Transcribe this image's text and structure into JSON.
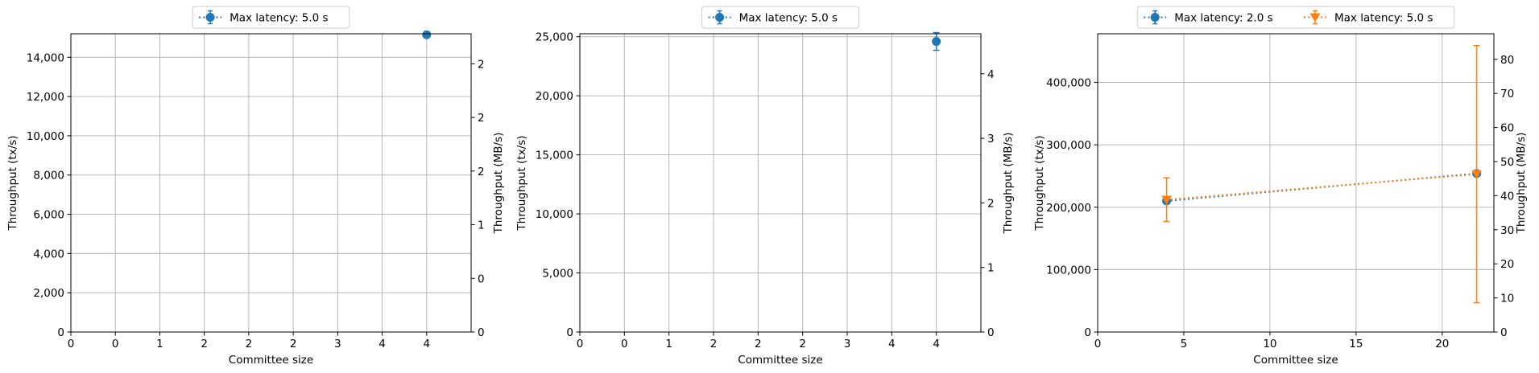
{
  "chart_data": [
    {
      "type": "scatter",
      "xlabel": "Committee size",
      "ylabel": "Throughput (tx/s)",
      "ylabel_right": "Throughput (MB/s)",
      "xlim": [
        0,
        4.5
      ],
      "ylim": [
        0,
        15200
      ],
      "x_ticks": [
        0,
        0.5,
        1,
        1.5,
        2,
        2.5,
        3,
        3.5,
        4
      ],
      "x_tick_labels": [
        "0",
        "0",
        "1",
        "2",
        "2",
        "2",
        "3",
        "4",
        "4"
      ],
      "y_ticks": [
        0,
        2000,
        4000,
        6000,
        8000,
        10000,
        12000,
        14000
      ],
      "y_tick_labels": [
        "0",
        "2,000",
        "4,000",
        "6,000",
        "8,000",
        "10,000",
        "12,000",
        "14,000"
      ],
      "y2_ticks": [
        0,
        0.5,
        1,
        1.5,
        2,
        2.5
      ],
      "y2_tick_labels": [
        "0",
        "0",
        "1",
        "2",
        "2",
        "2"
      ],
      "y2_lim": [
        0,
        2.78
      ],
      "grid": true,
      "legend_position": "top-center",
      "series": [
        {
          "name": "Max latency: 5.0 s",
          "color": "#1f77b4",
          "marker": "circle",
          "points": [
            {
              "x": 4,
              "y": 15150,
              "err": 0
            }
          ]
        }
      ]
    },
    {
      "type": "scatter",
      "xlabel": "Committee size",
      "ylabel": "Throughput (tx/s)",
      "ylabel_right": "Throughput (MB/s)",
      "xlim": [
        0,
        4.5
      ],
      "ylim": [
        0,
        25250
      ],
      "x_ticks": [
        0,
        0.5,
        1,
        1.5,
        2,
        2.5,
        3,
        3.5,
        4
      ],
      "x_tick_labels": [
        "0",
        "0",
        "1",
        "2",
        "2",
        "2",
        "3",
        "4",
        "4"
      ],
      "y_ticks": [
        0,
        5000,
        10000,
        15000,
        20000,
        25000
      ],
      "y_tick_labels": [
        "0",
        "5,000",
        "10,000",
        "15,000",
        "20,000",
        "25,000"
      ],
      "y2_ticks": [
        0,
        1,
        2,
        3,
        4
      ],
      "y2_tick_labels": [
        "0",
        "1",
        "2",
        "3",
        "4"
      ],
      "y2_lim": [
        0,
        4.62
      ],
      "grid": true,
      "legend_position": "top-center",
      "series": [
        {
          "name": "Max latency: 5.0 s",
          "color": "#1f77b4",
          "marker": "circle",
          "points": [
            {
              "x": 4,
              "y": 24600,
              "err": 750
            }
          ]
        }
      ]
    },
    {
      "type": "line",
      "xlabel": "Committee size",
      "ylabel": "Throughput (tx/s)",
      "ylabel_right": "Throughput (MB/s)",
      "xlim": [
        0,
        23
      ],
      "ylim": [
        0,
        478000
      ],
      "x_ticks": [
        0,
        5,
        10,
        15,
        20
      ],
      "x_tick_labels": [
        "0",
        "5",
        "10",
        "15",
        "20"
      ],
      "y_ticks": [
        0,
        100000,
        200000,
        300000,
        400000
      ],
      "y_tick_labels": [
        "0",
        "100,000",
        "200,000",
        "300,000",
        "400,000"
      ],
      "y2_ticks": [
        0,
        10,
        20,
        30,
        40,
        50,
        60,
        70,
        80
      ],
      "y2_tick_labels": [
        "0",
        "10",
        "20",
        "30",
        "40",
        "50",
        "60",
        "70",
        "80"
      ],
      "y2_lim": [
        0,
        87.5
      ],
      "grid": true,
      "legend_position": "top-center",
      "series": [
        {
          "name": "Max latency: 2.0 s",
          "color": "#1f77b4",
          "marker": "circle",
          "points": [
            {
              "x": 4,
              "y": 210000,
              "err": 0
            },
            {
              "x": 22,
              "y": 254000,
              "err": 0
            }
          ]
        },
        {
          "name": "Max latency: 5.0 s",
          "color": "#ff7f0e",
          "marker": "triangle-down",
          "points": [
            {
              "x": 4,
              "y": 212000,
              "err": 35000
            },
            {
              "x": 22,
              "y": 253000,
              "err": 206000
            }
          ]
        }
      ]
    }
  ]
}
